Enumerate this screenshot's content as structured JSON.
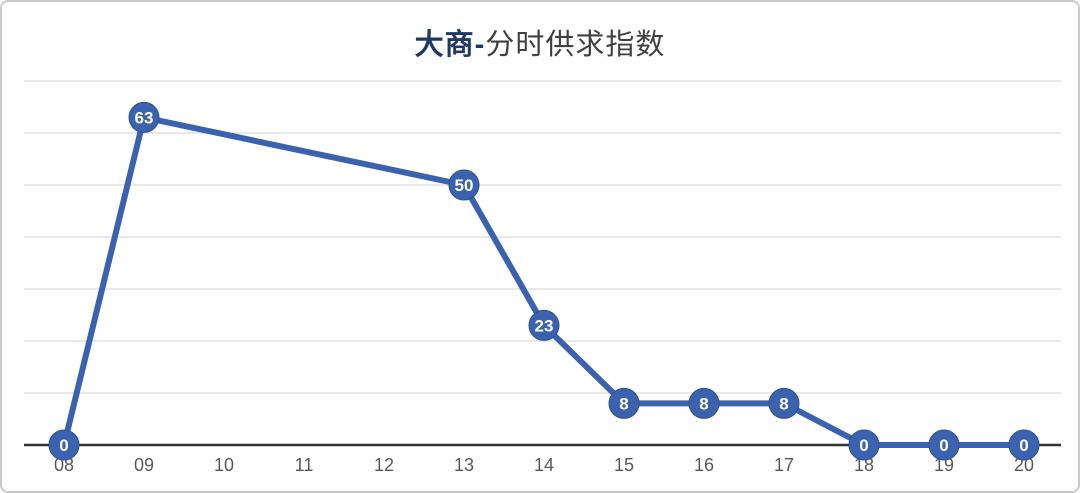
{
  "title": {
    "primary": "大商-",
    "secondary": "分时供求指数"
  },
  "colors": {
    "line": "#3a62ae",
    "marker_fill": "#3a62ae",
    "marker_stroke": "#2e5190",
    "marker_label": "#ffffff",
    "gridline": "#d9d9d9",
    "axis_line": "#333333",
    "tick_label": "#595959",
    "title_primary": "#1f3864",
    "title_secondary": "#404040",
    "frame_border": "#c9c9c9"
  },
  "chart_data": {
    "type": "line",
    "title": "大商-分时供求指数",
    "categories": [
      "08",
      "09",
      "10",
      "11",
      "12",
      "13",
      "14",
      "15",
      "16",
      "17",
      "18",
      "19",
      "20"
    ],
    "values": [
      0,
      63,
      null,
      null,
      null,
      50,
      23,
      8,
      8,
      8,
      0,
      0,
      0
    ],
    "data_labels": [
      0,
      63,
      null,
      null,
      null,
      50,
      23,
      8,
      8,
      8,
      0,
      0,
      0
    ],
    "xlabel": "",
    "ylabel": "",
    "ylim": [
      0,
      70
    ],
    "grid_step": 10,
    "grid": true,
    "legend": false,
    "label_position": "inside-marker"
  }
}
